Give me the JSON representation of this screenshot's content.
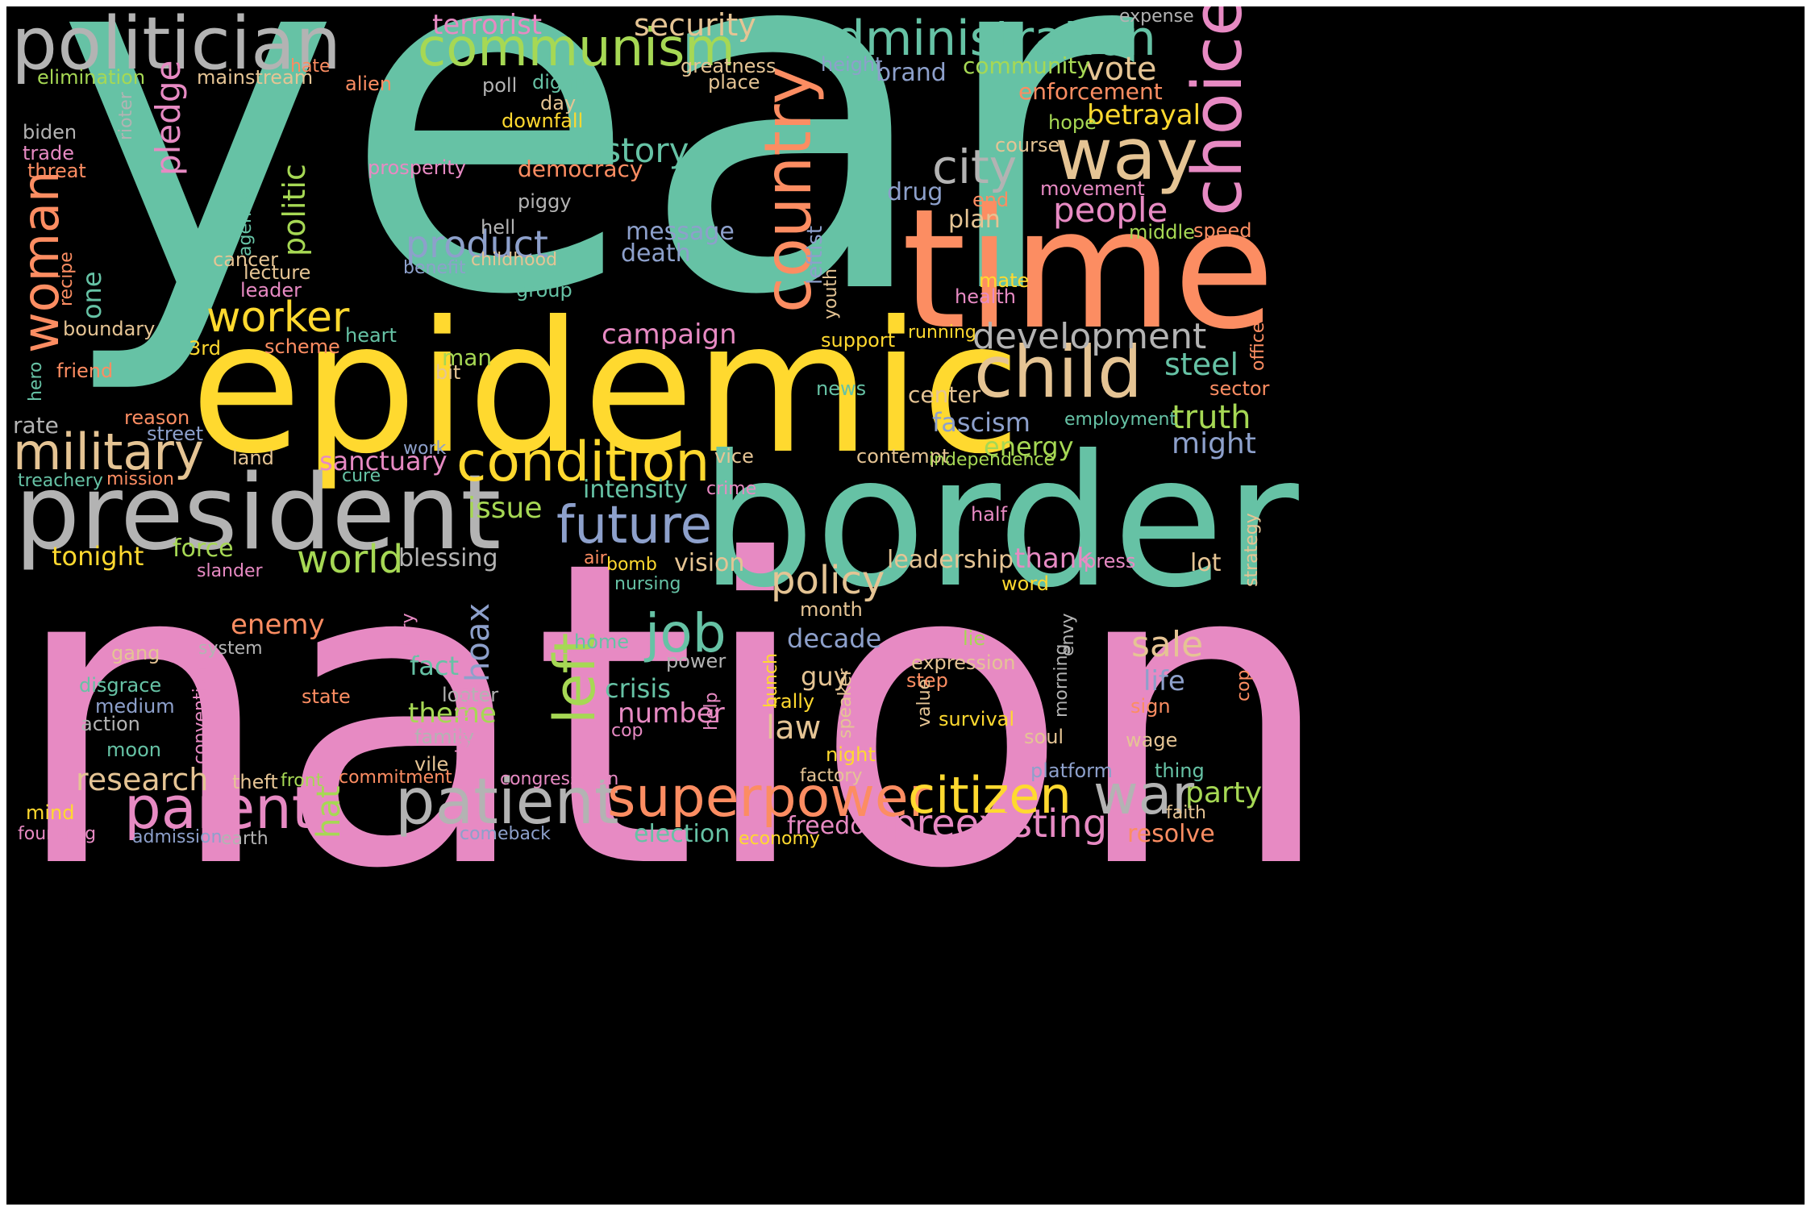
{
  "palette": {
    "background": "#000000",
    "teal": "#66c2a5",
    "orange": "#fc8d62",
    "blue": "#8da0cb",
    "pink": "#e78ac3",
    "green": "#a6d854",
    "yellow": "#ffd92f",
    "tan": "#e5c494",
    "grey": "#b3b3b3"
  },
  "words": [
    "year",
    "nation",
    "epidemic",
    "border",
    "time",
    "president",
    "politician",
    "country",
    "choice",
    "way",
    "child",
    "communism",
    "administration",
    "military",
    "condition",
    "future",
    "patient",
    "parent",
    "superpower",
    "citizen",
    "war",
    "woman",
    "worker",
    "job",
    "left",
    "city",
    "history",
    "development",
    "people",
    "preexisting",
    "security",
    "terrorist",
    "product",
    "policy",
    "world",
    "pledge",
    "politic",
    "vote",
    "betrayal",
    "enforcement",
    "steel",
    "truth",
    "might",
    "fascism",
    "energy",
    "campaign",
    "message",
    "death",
    "sanctuary",
    "intensity",
    "issue",
    "hoax",
    "sale",
    "research",
    "hat",
    "enemy",
    "theme",
    "fact",
    "crisis",
    "number",
    "law",
    "decade",
    "guy",
    "life",
    "party",
    "resolve",
    "freedom",
    "election",
    "tonight",
    "force",
    "thank",
    "leadership",
    "lot",
    "vision",
    "blessing",
    "plan",
    "drug",
    "center",
    "one",
    "brand",
    "community",
    "democracy",
    "prosperity",
    "downfall",
    "day",
    "dignity",
    "greatness",
    "place",
    "height",
    "expense",
    "mainstream",
    "hate",
    "alien",
    "poll",
    "elimination",
    "biden",
    "trade",
    "threat",
    "rioter",
    "piggy",
    "hell",
    "movement",
    "end",
    "course",
    "hope",
    "middle",
    "speed",
    "agenda",
    "leftist",
    "cancer",
    "lecture",
    "leader",
    "benefit",
    "childhood",
    "group",
    "recipe",
    "boundary",
    "mate",
    "health",
    "youth",
    "running",
    "support",
    "office",
    "3rd",
    "scheme",
    "heart",
    "man",
    "bit",
    "friend",
    "hero",
    "reason",
    "rate",
    "street",
    "news",
    "sector",
    "employment",
    "work",
    "land",
    "vice",
    "contempt",
    "independence",
    "treachery",
    "mission",
    "cure",
    "crime",
    "half",
    "strategy",
    "slander",
    "air",
    "bomb",
    "press",
    "nursing",
    "word",
    "glory",
    "home",
    "lie",
    "envy",
    "month",
    "gang",
    "system",
    "power",
    "disgrace",
    "medium",
    "action",
    "convention",
    "moon",
    "looter",
    "state",
    "bunch",
    "rally",
    "speaker",
    "help",
    "step",
    "survival",
    "value",
    "sign",
    "morning",
    "cop",
    "expression",
    "family",
    "migration",
    "vile",
    "soul",
    "wage",
    "night",
    "factory",
    "commitment",
    "congressman",
    "platform",
    "thing",
    "theft",
    "front",
    "mind",
    "founding",
    "admission",
    "earth",
    "comeback",
    "economy",
    "faith",
    "excuse"
  ]
}
